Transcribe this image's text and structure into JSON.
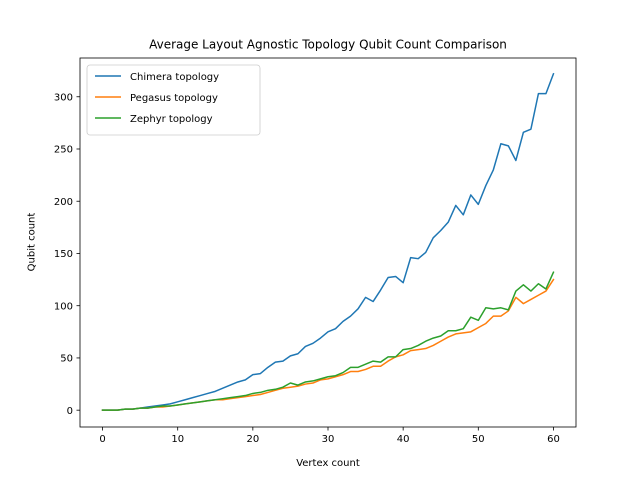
{
  "chart_data": {
    "type": "line",
    "title": "Average Layout Agnostic Topology Qubit Count Comparison",
    "xlabel": "Vertex count",
    "ylabel": "Qubit count",
    "xlim": [
      -3.0,
      63.0
    ],
    "ylim": [
      -16.1,
      337.1
    ],
    "xticks": [
      0,
      10,
      20,
      30,
      40,
      50,
      60
    ],
    "yticks": [
      0,
      50,
      100,
      150,
      200,
      250,
      300
    ],
    "grid": false,
    "legend_position": "upper-left",
    "x": [
      0,
      1,
      2,
      3,
      4,
      5,
      6,
      7,
      8,
      9,
      10,
      11,
      12,
      13,
      14,
      15,
      16,
      17,
      18,
      19,
      20,
      21,
      22,
      23,
      24,
      25,
      26,
      27,
      28,
      29,
      30,
      31,
      32,
      33,
      34,
      35,
      36,
      37,
      38,
      39,
      40,
      41,
      42,
      43,
      44,
      45,
      46,
      47,
      48,
      49,
      50,
      51,
      52,
      53,
      54,
      55,
      56,
      57,
      58,
      59,
      60
    ],
    "series": [
      {
        "name": "Chimera topology",
        "color": "#1f77b4",
        "values": [
          0,
          0,
          0,
          1,
          1,
          2,
          3,
          4,
          5,
          6,
          8,
          10,
          12,
          14,
          16,
          18,
          21,
          24,
          27,
          29,
          34,
          35,
          41,
          46,
          47,
          52,
          54,
          61,
          64,
          69,
          75,
          78,
          85,
          90,
          97,
          108,
          104,
          115,
          127,
          128,
          122,
          146,
          145,
          151,
          165,
          172,
          180,
          196,
          187,
          206,
          197,
          215,
          230,
          255,
          253,
          239,
          266,
          269,
          303,
          303,
          322
        ]
      },
      {
        "name": "Pegasus topology",
        "color": "#ff7f0e",
        "values": [
          0,
          0,
          0,
          1,
          1,
          2,
          2,
          3,
          3,
          4,
          5,
          6,
          7,
          8,
          9,
          10,
          10,
          11,
          12,
          13,
          14,
          15,
          17,
          19,
          21,
          22,
          23,
          25,
          26,
          29,
          30,
          32,
          34,
          37,
          37,
          39,
          42,
          42,
          47,
          51,
          53,
          57,
          58,
          59,
          62,
          66,
          70,
          73,
          74,
          75,
          79,
          83,
          90,
          90,
          95,
          108,
          102,
          106,
          110,
          114,
          125
        ]
      },
      {
        "name": "Zephyr topology",
        "color": "#2ca02c",
        "values": [
          0,
          0,
          0,
          1,
          1,
          2,
          2,
          3,
          4,
          4,
          5,
          6,
          7,
          8,
          9,
          10,
          11,
          12,
          13,
          14,
          16,
          17,
          19,
          20,
          22,
          26,
          24,
          27,
          28,
          30,
          32,
          33,
          36,
          41,
          41,
          44,
          47,
          46,
          51,
          51,
          58,
          59,
          62,
          66,
          69,
          71,
          76,
          76,
          78,
          89,
          86,
          98,
          97,
          98,
          96,
          114,
          120,
          114,
          121,
          116,
          132
        ]
      }
    ]
  }
}
